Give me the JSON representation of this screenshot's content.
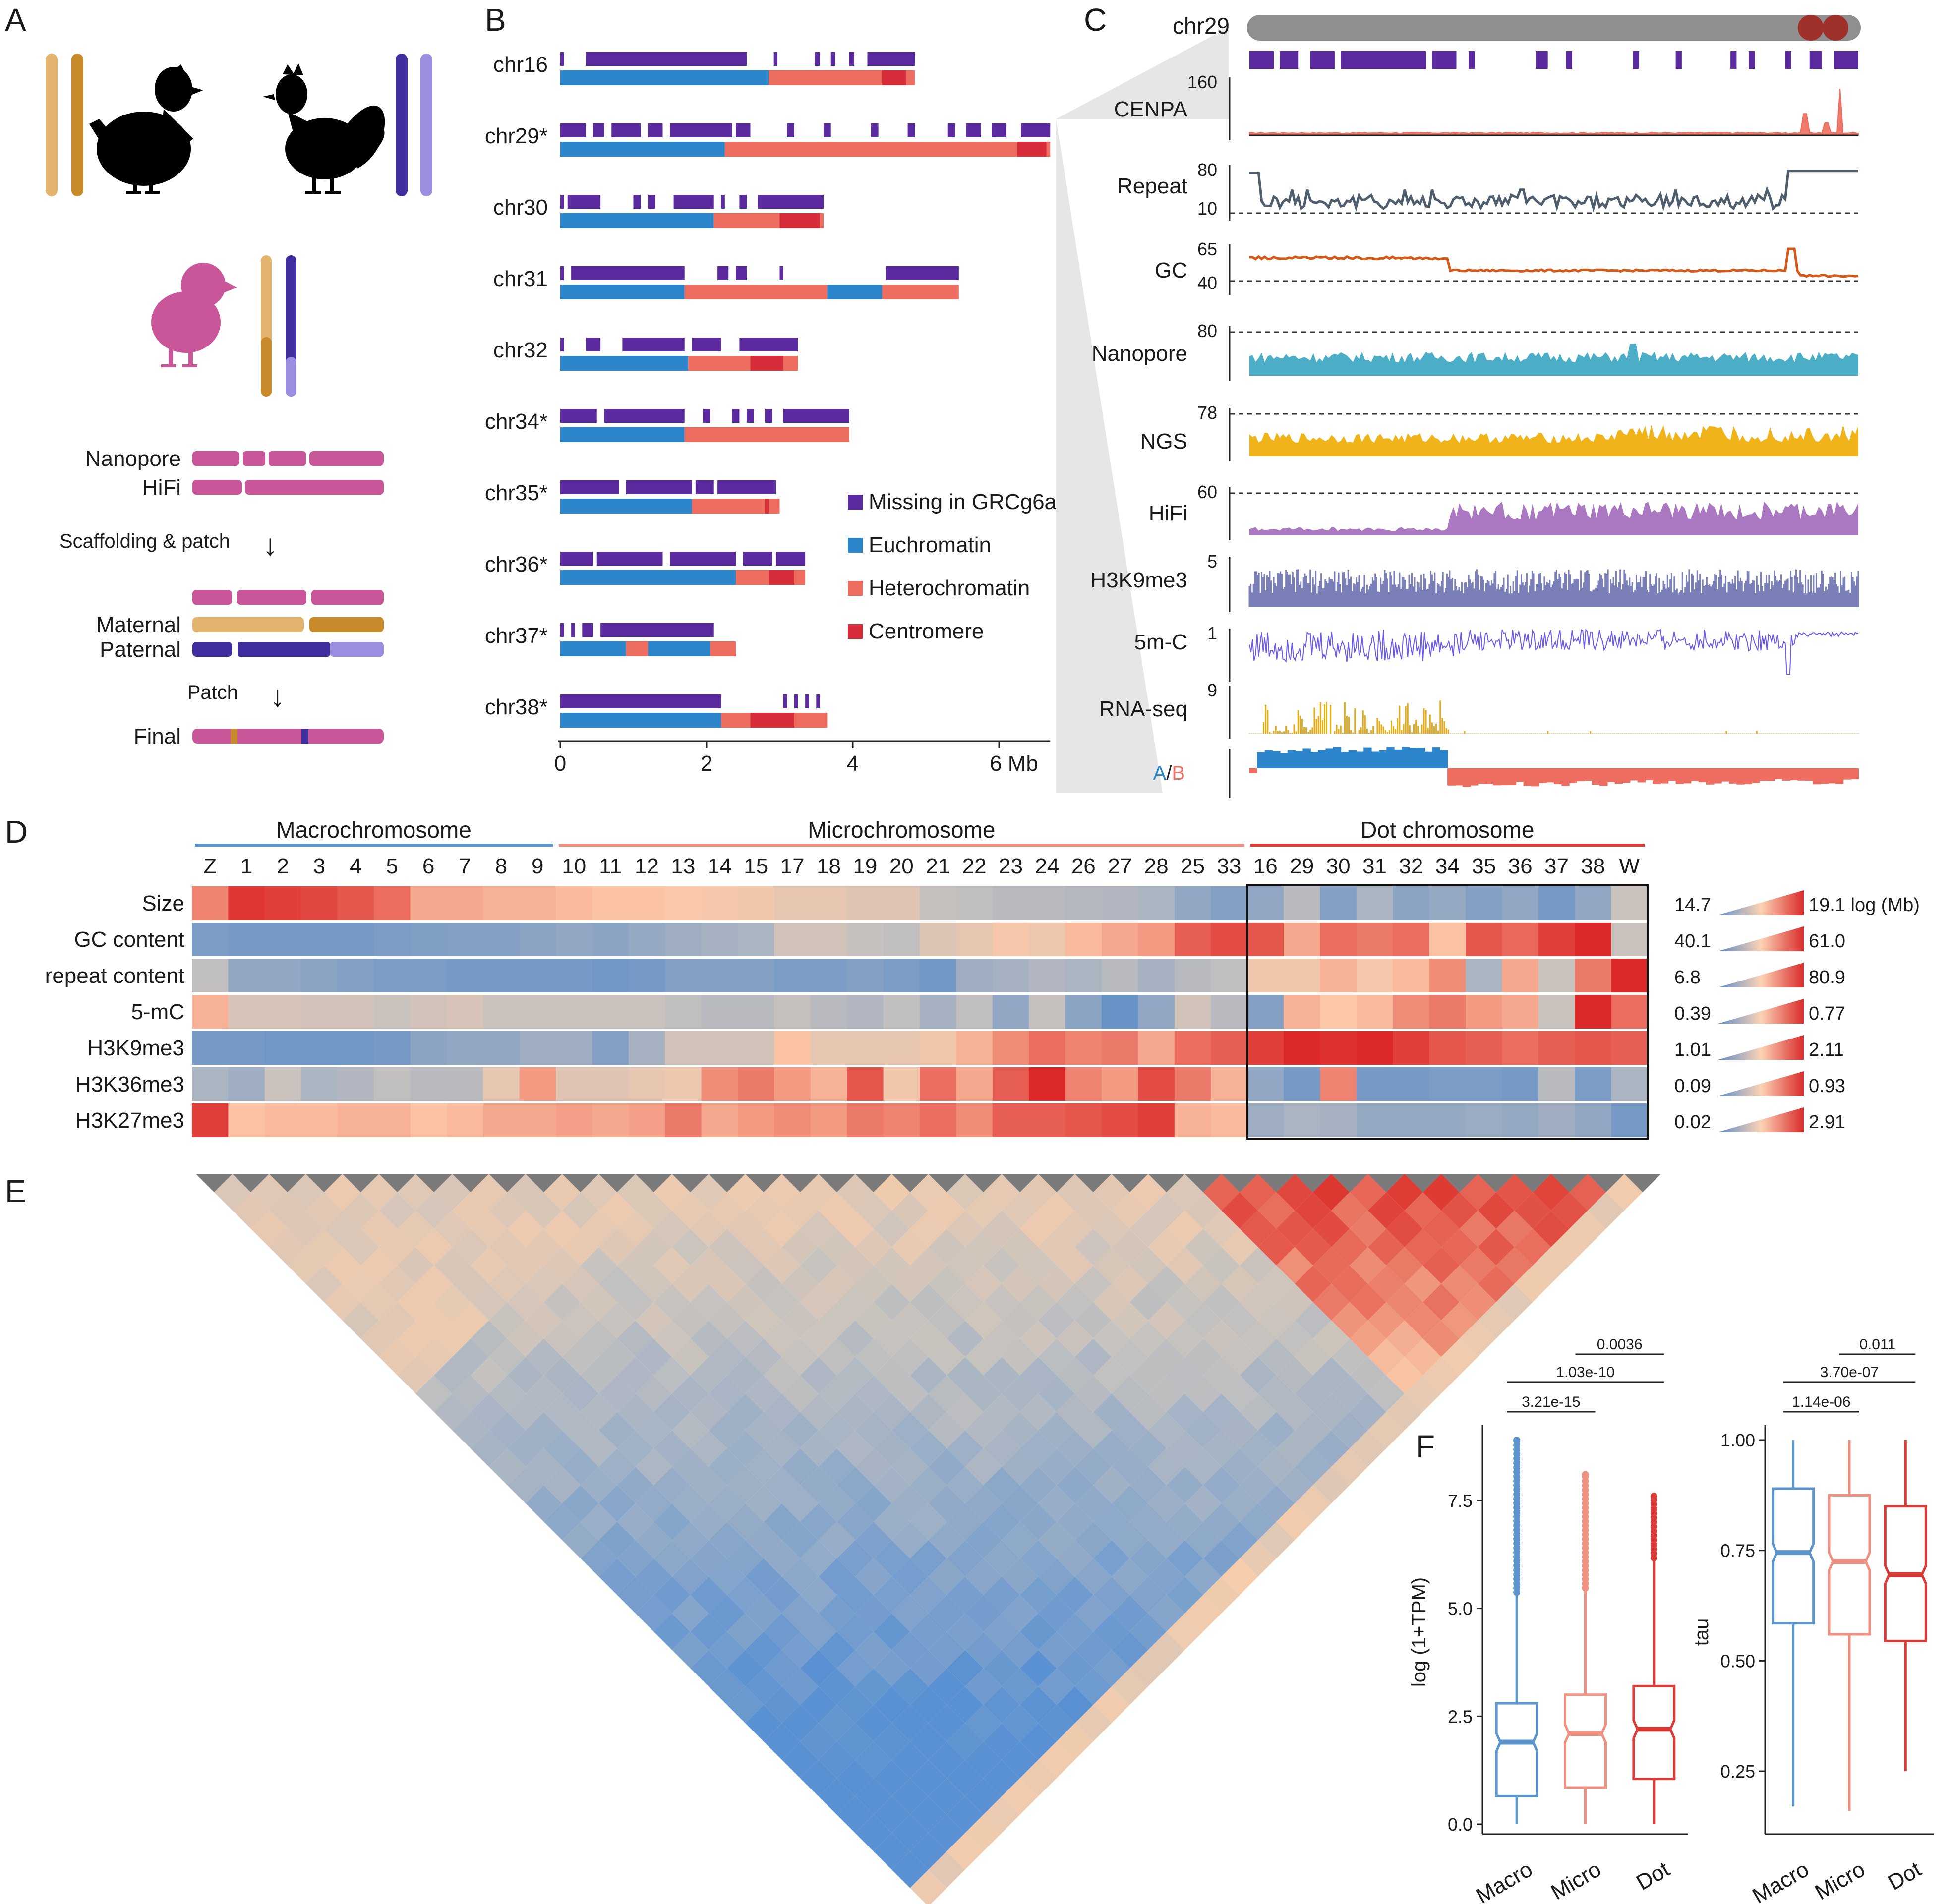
{
  "panels": {
    "a": "A",
    "b": "B",
    "c": "C",
    "d": "D",
    "e": "E",
    "f": "F"
  },
  "colors": {
    "missing": "#5b2a9e",
    "euchromatin": "#2d85cc",
    "heterochromatin": "#ed6d61",
    "centromere": "#d72c39",
    "maternal_light": "#e3b46e",
    "maternal_dark": "#c88a2a",
    "paternal_dark": "#3f2f9e",
    "paternal_light": "#9b8de0",
    "chick": "#c85699",
    "grey": "#8f8f8f",
    "macro": "#5b95cc",
    "micro": "#ef9180",
    "dot": "#d83b38"
  },
  "panel_a": {
    "reads": [
      "Nanopore",
      "HiFi"
    ],
    "step1": "Scaffolding & patch",
    "haps": [
      "Maternal",
      "Paternal"
    ],
    "step2": "Patch",
    "final": "Final",
    "arrow": "↓"
  },
  "panel_b": {
    "chromosomes": [
      {
        "name": "chr16",
        "length": 4.85,
        "missing": [
          [
            0,
            0.05
          ],
          [
            0.35,
            2.55
          ],
          [
            2.92,
            2.97
          ],
          [
            3.48,
            3.55
          ],
          [
            3.7,
            3.76
          ],
          [
            3.95,
            4.02
          ],
          [
            4.2,
            4.85
          ]
        ],
        "bands": [
          [
            "eu",
            0,
            2.85
          ],
          [
            "het",
            2.85,
            4.4
          ],
          [
            "cen",
            4.4,
            4.73
          ],
          [
            "het",
            4.73,
            4.85
          ]
        ]
      },
      {
        "name": "chr29*",
        "length": 6.7,
        "missing": [
          [
            0,
            0.35
          ],
          [
            0.45,
            0.6
          ],
          [
            0.7,
            1.1
          ],
          [
            1.2,
            1.4
          ],
          [
            1.5,
            2.35
          ],
          [
            2.4,
            2.6
          ],
          [
            3.1,
            3.2
          ],
          [
            3.6,
            3.7
          ],
          [
            4.25,
            4.35
          ],
          [
            4.75,
            4.85
          ],
          [
            5.3,
            5.4
          ],
          [
            5.55,
            5.75
          ],
          [
            5.9,
            6.1
          ],
          [
            6.3,
            6.7
          ]
        ],
        "bands": [
          [
            "eu",
            0,
            2.25
          ],
          [
            "het",
            2.25,
            6.25
          ],
          [
            "cen",
            6.25,
            6.65
          ],
          [
            "het",
            6.65,
            6.7
          ]
        ]
      },
      {
        "name": "chr30",
        "length": 3.6,
        "missing": [
          [
            0,
            0.05
          ],
          [
            0.1,
            0.55
          ],
          [
            1.0,
            1.1
          ],
          [
            1.2,
            1.3
          ],
          [
            1.55,
            2.1
          ],
          [
            2.2,
            2.25
          ],
          [
            2.45,
            2.55
          ],
          [
            2.7,
            3.6
          ]
        ],
        "bands": [
          [
            "eu",
            0,
            2.1
          ],
          [
            "het",
            2.1,
            3.0
          ],
          [
            "cen",
            3.0,
            3.55
          ],
          [
            "het",
            3.55,
            3.6
          ]
        ]
      },
      {
        "name": "chr31",
        "length": 5.45,
        "missing": [
          [
            0,
            0.05
          ],
          [
            0.15,
            1.7
          ],
          [
            2.15,
            2.3
          ],
          [
            2.4,
            2.55
          ],
          [
            3.0,
            3.05
          ],
          [
            4.45,
            5.45
          ]
        ],
        "bands": [
          [
            "eu",
            0,
            1.7
          ],
          [
            "het",
            1.7,
            3.65
          ],
          [
            "eu",
            3.65,
            4.4
          ],
          [
            "het",
            4.4,
            5.45
          ]
        ]
      },
      {
        "name": "chr32",
        "length": 3.25,
        "missing": [
          [
            0,
            0.05
          ],
          [
            0.35,
            0.55
          ],
          [
            0.85,
            1.7
          ],
          [
            1.8,
            2.2
          ],
          [
            2.45,
            3.25
          ]
        ],
        "bands": [
          [
            "eu",
            0,
            1.75
          ],
          [
            "het",
            1.75,
            2.6
          ],
          [
            "cen",
            2.6,
            3.05
          ],
          [
            "het",
            3.05,
            3.25
          ]
        ]
      },
      {
        "name": "chr34*",
        "length": 3.95,
        "missing": [
          [
            0,
            0.5
          ],
          [
            0.6,
            1.7
          ],
          [
            1.95,
            2.05
          ],
          [
            2.35,
            2.45
          ],
          [
            2.55,
            2.65
          ],
          [
            2.8,
            2.9
          ],
          [
            3.05,
            3.95
          ]
        ],
        "bands": [
          [
            "eu",
            0,
            1.7
          ],
          [
            "het",
            1.7,
            3.95
          ]
        ]
      },
      {
        "name": "chr35*",
        "length": 3.0,
        "missing": [
          [
            0,
            0.8
          ],
          [
            0.9,
            1.8
          ],
          [
            1.85,
            2.1
          ],
          [
            2.15,
            2.95
          ]
        ],
        "bands": [
          [
            "eu",
            0,
            1.8
          ],
          [
            "het",
            1.8,
            2.8
          ],
          [
            "cen",
            2.8,
            2.85
          ],
          [
            "het",
            2.85,
            3.0
          ]
        ]
      },
      {
        "name": "chr36*",
        "length": 3.35,
        "missing": [
          [
            0,
            0.45
          ],
          [
            0.5,
            1.4
          ],
          [
            1.5,
            2.4
          ],
          [
            2.5,
            2.9
          ],
          [
            2.95,
            3.35
          ]
        ],
        "bands": [
          [
            "eu",
            0,
            2.4
          ],
          [
            "het",
            2.4,
            2.85
          ],
          [
            "cen",
            2.85,
            3.2
          ],
          [
            "het",
            3.2,
            3.35
          ]
        ]
      },
      {
        "name": "chr37*",
        "length": 2.4,
        "missing": [
          [
            0,
            0.05
          ],
          [
            0.15,
            0.2
          ],
          [
            0.3,
            0.45
          ],
          [
            0.55,
            2.1
          ]
        ],
        "bands": [
          [
            "eu",
            0,
            0.9
          ],
          [
            "het",
            0.9,
            1.2
          ],
          [
            "eu",
            1.2,
            2.05
          ],
          [
            "het",
            2.05,
            2.4
          ]
        ]
      },
      {
        "name": "chr38*",
        "length": 3.65,
        "missing": [
          [
            0,
            2.2
          ],
          [
            3.05,
            3.1
          ],
          [
            3.2,
            3.25
          ],
          [
            3.35,
            3.4
          ],
          [
            3.5,
            3.55
          ]
        ],
        "bands": [
          [
            "eu",
            0,
            2.2
          ],
          [
            "het",
            2.2,
            2.6
          ],
          [
            "cen",
            2.6,
            3.2
          ],
          [
            "het",
            3.2,
            3.65
          ]
        ]
      }
    ],
    "legend": [
      "Missing in GRCg6a",
      "Euchromatin",
      "Heterochromatin",
      "Centromere"
    ],
    "axis": {
      "ticks": [
        "0",
        "2",
        "4",
        "6 Mb"
      ],
      "values": [
        0,
        2,
        4,
        6
      ]
    }
  },
  "panel_c": {
    "chrom": "chr29",
    "tracks": [
      {
        "label": "CENPA",
        "max": "160"
      },
      {
        "label": "Repeat",
        "max": "80",
        "min": "10"
      },
      {
        "label": "GC",
        "max": "65",
        "min": "40"
      },
      {
        "label": "Nanopore",
        "max": "80"
      },
      {
        "label": "NGS",
        "max": "78"
      },
      {
        "label": "HiFi",
        "max": "60"
      },
      {
        "label": "H3K9me3",
        "max": "5"
      },
      {
        "label": "5m-C",
        "max": "1"
      },
      {
        "label": "RNA-seq",
        "max": "9"
      }
    ],
    "ab": {
      "a": "A",
      "sep": "/",
      "b": "B"
    }
  },
  "panel_d": {
    "groups": [
      "Macrochromosome",
      "Microchromosome",
      "Dot chromosome"
    ],
    "columns": [
      "Z",
      "1",
      "2",
      "3",
      "4",
      "5",
      "6",
      "7",
      "8",
      "9",
      "10",
      "11",
      "12",
      "13",
      "14",
      "15",
      "17",
      "18",
      "19",
      "20",
      "21",
      "22",
      "23",
      "24",
      "26",
      "27",
      "28",
      "25",
      "33",
      "16",
      "29",
      "30",
      "31",
      "32",
      "34",
      "35",
      "36",
      "37",
      "38",
      "W"
    ],
    "rows": [
      {
        "label": "Size",
        "min": "14.7",
        "max": "19.1 log (Mb)"
      },
      {
        "label": "GC content",
        "min": "40.1",
        "max": "61.0"
      },
      {
        "label": "repeat content",
        "min": "6.8",
        "max": "80.9"
      },
      {
        "label": "5-mC",
        "min": "0.39",
        "max": "0.77"
      },
      {
        "label": "H3K9me3",
        "min": "1.01",
        "max": "2.11"
      },
      {
        "label": "H3K36me3",
        "min": "0.09",
        "max": "0.93"
      },
      {
        "label": "H3K27me3",
        "min": "0.02",
        "max": "2.91"
      }
    ]
  },
  "panel_f": {
    "left": {
      "ylabel": "log (1+TPM)",
      "yticks": [
        "0.0",
        "2.5",
        "5.0",
        "7.5"
      ],
      "yvalues": [
        0,
        2.5,
        5,
        7.5
      ],
      "pvalues": [
        "0.0036",
        "1.03e-10",
        "3.21e-15"
      ],
      "groups": [
        {
          "name": "Macro",
          "q1": 0.65,
          "median": 1.9,
          "q3": 2.8,
          "low": 0.0,
          "high": 5.3,
          "outmax": 8.9
        },
        {
          "name": "Micro",
          "q1": 0.85,
          "median": 2.1,
          "q3": 3.0,
          "low": 0.0,
          "high": 5.4,
          "outmax": 8.1
        },
        {
          "name": "Dot",
          "q1": 1.05,
          "median": 2.2,
          "q3": 3.2,
          "low": 0.0,
          "high": 6.1,
          "outmax": 7.6
        }
      ]
    },
    "right": {
      "ylabel": "tau",
      "yticks": [
        "0.25",
        "0.50",
        "0.75",
        "1.00"
      ],
      "yvalues": [
        0.25,
        0.5,
        0.75,
        1.0
      ],
      "pvalues": [
        "0.011",
        "3.70e-07",
        "1.14e-06"
      ],
      "groups": [
        {
          "name": "Macro",
          "q1": 0.585,
          "median": 0.745,
          "q3": 0.89,
          "low": 0.17,
          "high": 1.0
        },
        {
          "name": "Micro",
          "q1": 0.56,
          "median": 0.725,
          "q3": 0.875,
          "low": 0.16,
          "high": 1.0
        },
        {
          "name": "Dot",
          "q1": 0.545,
          "median": 0.695,
          "q3": 0.85,
          "low": 0.25,
          "high": 1.0
        }
      ]
    }
  }
}
